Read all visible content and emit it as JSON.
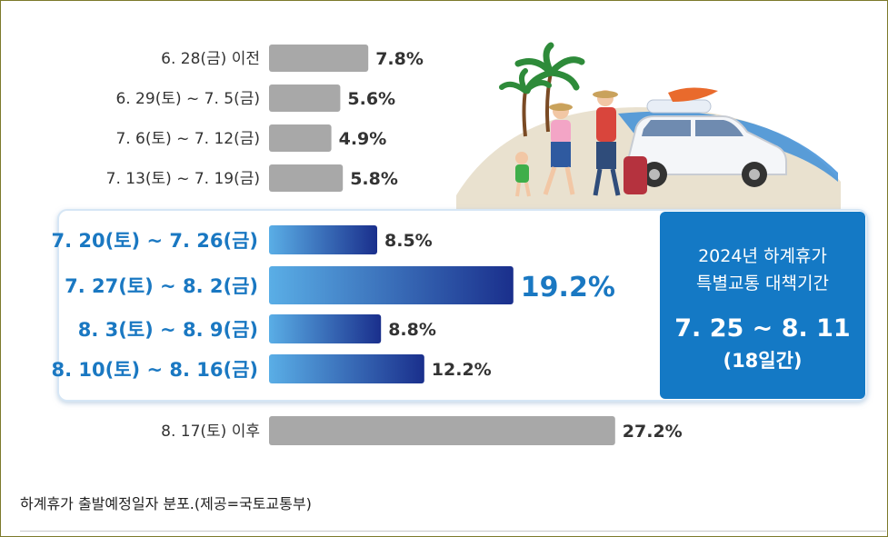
{
  "chart_data": {
    "type": "bar",
    "orientation": "horizontal",
    "categories": [
      "6. 28(금) 이전",
      "6. 29(토) ~ 7. 5(금)",
      "7. 6(토) ~ 7. 12(금)",
      "7. 13(토) ~ 7. 19(금)",
      "7. 20(토) ~ 7. 26(금)",
      "7. 27(토) ~ 8. 2(금)",
      "8. 3(토) ~ 8. 9(금)",
      "8. 10(토) ~ 8. 16(금)",
      "8. 17(토) 이후"
    ],
    "values": [
      7.8,
      5.6,
      4.9,
      5.8,
      8.5,
      19.2,
      8.8,
      12.2,
      27.2
    ],
    "value_labels": [
      "7.8%",
      "5.6%",
      "4.9%",
      "5.8%",
      "8.5%",
      "19.2%",
      "8.8%",
      "12.2%",
      "27.2%"
    ],
    "highlighted": [
      false,
      false,
      false,
      false,
      true,
      true,
      true,
      true,
      false
    ],
    "units": "%",
    "colors": {
      "gray_bar": "#a8a8a8",
      "blue_start": "#5aaee6",
      "blue_end": "#1a2f8c",
      "highlight_text": "#1a78c2",
      "panel_bg": "#1479c5",
      "highlight_box_border": "#cfe3f5",
      "page_bg": "#ffffff"
    }
  },
  "callout": {
    "title_line1": "2024년 하계휴가",
    "title_line2": "특별교통 대책기간",
    "period": "7. 25 ~ 8. 11",
    "days": "(18일간)"
  },
  "caption": "하계휴가 출발예정일자 분포.(제공=국토교통부)"
}
